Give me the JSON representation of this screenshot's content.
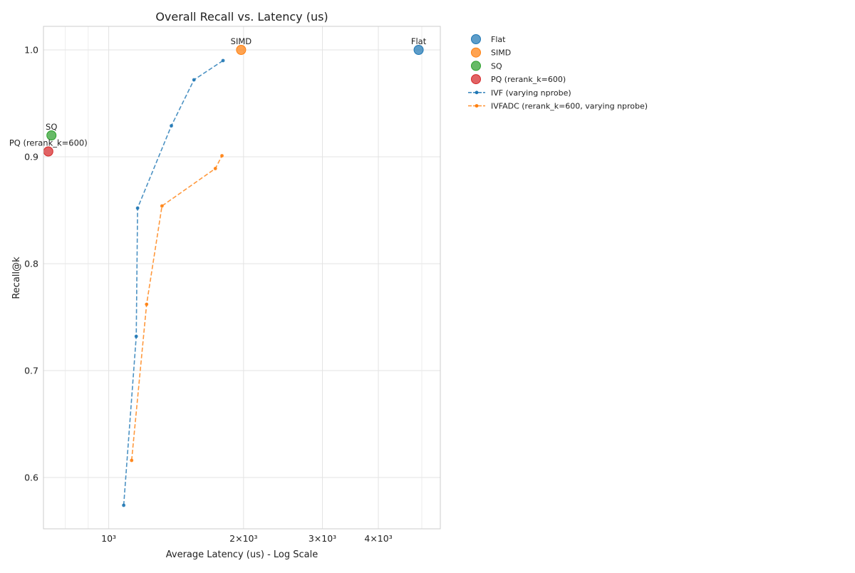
{
  "chart_data": {
    "type": "scatter",
    "title": "Overall Recall vs. Latency (us)",
    "xlabel": "Average Latency (us) - Log Scale",
    "ylabel": "Recall@k",
    "x_scale": "log",
    "xlim": [
      715,
      5500
    ],
    "ylim": [
      0.552,
      1.022
    ],
    "x_ticks": [
      {
        "value": 1000,
        "label": "10³"
      },
      {
        "value": 2000,
        "label": "2×10³"
      },
      {
        "value": 3000,
        "label": "3×10³"
      },
      {
        "value": 4000,
        "label": "4×10³"
      }
    ],
    "x_minor_ticks": [
      800,
      900,
      5000
    ],
    "y_ticks": [
      {
        "value": 0.6,
        "label": "0.6"
      },
      {
        "value": 0.7,
        "label": "0.7"
      },
      {
        "value": 0.8,
        "label": "0.8"
      },
      {
        "value": 0.9,
        "label": "0.9"
      },
      {
        "value": 1.0,
        "label": "1.0"
      }
    ],
    "grid": true,
    "legend_position": "outside-right",
    "points": [
      {
        "name": "Flat",
        "x": 4920,
        "y": 1.0,
        "color": "#1f77b4",
        "label": "Flat"
      },
      {
        "name": "SIMD",
        "x": 1975,
        "y": 1.0,
        "color": "#ff7f0e",
        "label": "SIMD"
      },
      {
        "name": "SQ",
        "x": 745,
        "y": 0.92,
        "color": "#2ca02c",
        "label": "SQ"
      },
      {
        "name": "PQ (rerank_k=600)",
        "x": 733,
        "y": 0.905,
        "color": "#d62728",
        "label": "PQ (rerank_k=600)"
      }
    ],
    "series": [
      {
        "name": "IVF (varying nprobe)",
        "color": "#1f77b4",
        "x": [
          1080,
          1152,
          1160,
          1380,
          1550,
          1800
        ],
        "y": [
          0.574,
          0.732,
          0.852,
          0.929,
          0.972,
          0.99
        ]
      },
      {
        "name": "IVFADC (rerank_k=600, varying nprobe)",
        "color": "#ff7f0e",
        "x": [
          1125,
          1215,
          1315,
          1730,
          1790
        ],
        "y": [
          0.616,
          0.762,
          0.854,
          0.889,
          0.901
        ]
      }
    ]
  }
}
